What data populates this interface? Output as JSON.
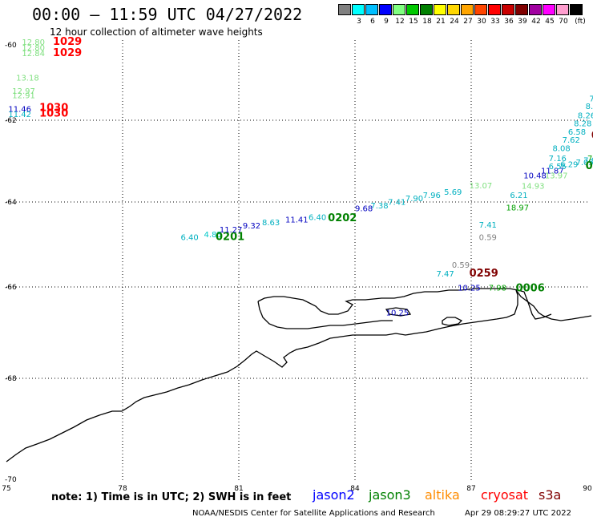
{
  "header": {
    "title": "00:00 – 11:59 UTC 04/27/2022",
    "subtitle": "12 hour collection of altimeter wave heights"
  },
  "legend": {
    "unit_label": "(ft)",
    "bins": [
      {
        "label": "",
        "color": "#808080"
      },
      {
        "label": "3",
        "color": "#00ffff"
      },
      {
        "label": "6",
        "color": "#00bfff"
      },
      {
        "label": "9",
        "color": "#0000ff"
      },
      {
        "label": "12",
        "color": "#80ff80"
      },
      {
        "label": "15",
        "color": "#00c800"
      },
      {
        "label": "18",
        "color": "#008000"
      },
      {
        "label": "21",
        "color": "#ffff00"
      },
      {
        "label": "24",
        "color": "#ffd700"
      },
      {
        "label": "27",
        "color": "#ffa500"
      },
      {
        "label": "30",
        "color": "#ff4500"
      },
      {
        "label": "33",
        "color": "#ff0000"
      },
      {
        "label": "36",
        "color": "#c80000"
      },
      {
        "label": "39",
        "color": "#800000"
      },
      {
        "label": "42",
        "color": "#a000a0"
      },
      {
        "label": "45",
        "color": "#ff00ff"
      },
      {
        "label": "70",
        "color": "#ff9ecf"
      },
      {
        "label": "",
        "color": "#000000"
      }
    ]
  },
  "map": {
    "lon_ticks": [
      "75",
      "78",
      "81",
      "84",
      "87",
      "90"
    ],
    "lat_ticks": [
      "-60",
      "-62",
      "-64",
      "-66",
      "-68",
      "-70"
    ],
    "observations": [
      {
        "text": "12.80",
        "lon": 75.4,
        "lat": -60.0,
        "color": "#80e080"
      },
      {
        "text": "12.80",
        "lon": 75.4,
        "lat": -60.15,
        "color": "#80e080"
      },
      {
        "text": "12.84",
        "lon": 75.4,
        "lat": -60.3,
        "color": "#80e080"
      },
      {
        "text": "1029",
        "lon": 76.2,
        "lat": -60.0,
        "color": "#ff0000",
        "time": true
      },
      {
        "text": "1029",
        "lon": 76.2,
        "lat": -60.3,
        "color": "#ff0000",
        "time": true
      },
      {
        "text": "13.18",
        "lon": 75.25,
        "lat": -60.95,
        "color": "#80e080"
      },
      {
        "text": "12.97",
        "lon": 75.15,
        "lat": -61.3,
        "color": "#80e080"
      },
      {
        "text": "12.91",
        "lon": 75.15,
        "lat": -61.42,
        "color": "#80e080"
      },
      {
        "text": "11.46",
        "lon": 75.05,
        "lat": -61.78,
        "color": "#0000c0"
      },
      {
        "text": "11.42",
        "lon": 75.05,
        "lat": -61.92,
        "color": "#00b0c0"
      },
      {
        "text": "1030",
        "lon": 75.85,
        "lat": -61.75,
        "color": "#ff0000",
        "time": true
      },
      {
        "text": "1030",
        "lon": 75.85,
        "lat": -61.9,
        "color": "#ff0000",
        "time": true
      },
      {
        "text": "6.40",
        "lon": 79.5,
        "lat": -64.9,
        "color": "#00b0c0"
      },
      {
        "text": "4.85",
        "lon": 80.1,
        "lat": -64.83,
        "color": "#00c8c8"
      },
      {
        "text": "0201",
        "lon": 80.4,
        "lat": -64.9,
        "color": "#008000",
        "time": true
      },
      {
        "text": "11.27",
        "lon": 80.5,
        "lat": -64.72,
        "color": "#0000c0"
      },
      {
        "text": "9.32",
        "lon": 81.1,
        "lat": -64.62,
        "color": "#0000c0"
      },
      {
        "text": "8.63",
        "lon": 81.6,
        "lat": -64.55,
        "color": "#00b0c0"
      },
      {
        "text": "11.41",
        "lon": 82.2,
        "lat": -64.48,
        "color": "#0000c0"
      },
      {
        "text": "6.40",
        "lon": 82.8,
        "lat": -64.42,
        "color": "#00b0c0"
      },
      {
        "text": "0202",
        "lon": 83.3,
        "lat": -64.45,
        "color": "#008000",
        "time": true
      },
      {
        "text": "9.68",
        "lon": 84.0,
        "lat": -64.22,
        "color": "#0000c0"
      },
      {
        "text": "7.38",
        "lon": 84.4,
        "lat": -64.15,
        "color": "#00b0c0"
      },
      {
        "text": "7.41",
        "lon": 84.85,
        "lat": -64.07,
        "color": "#00b0c0"
      },
      {
        "text": "7.90",
        "lon": 85.3,
        "lat": -63.98,
        "color": "#00b0c0"
      },
      {
        "text": "7.96",
        "lon": 85.75,
        "lat": -63.9,
        "color": "#00b0c0"
      },
      {
        "text": "5.69",
        "lon": 86.3,
        "lat": -63.82,
        "color": "#00b0c0"
      },
      {
        "text": "13.07",
        "lon": 86.95,
        "lat": -63.67,
        "color": "#80e080"
      },
      {
        "text": "10.48",
        "lon": 88.35,
        "lat": -63.42,
        "color": "#0000c0"
      },
      {
        "text": "11.87",
        "lon": 88.8,
        "lat": -63.3,
        "color": "#0000c0"
      },
      {
        "text": "13.97",
        "lon": 88.9,
        "lat": -63.42,
        "color": "#80e080"
      },
      {
        "text": "14.93",
        "lon": 88.3,
        "lat": -63.68,
        "color": "#80e080"
      },
      {
        "text": "6.21",
        "lon": 88.0,
        "lat": -63.9,
        "color": "#00b0c0"
      },
      {
        "text": "18.97",
        "lon": 87.9,
        "lat": -64.2,
        "color": "#00a000"
      },
      {
        "text": "7.41",
        "lon": 87.2,
        "lat": -64.6,
        "color": "#00b0c0"
      },
      {
        "text": "0.59",
        "lon": 87.2,
        "lat": -64.9,
        "color": "#808080"
      },
      {
        "text": "0.59",
        "lon": 86.5,
        "lat": -65.55,
        "color": "#808080"
      },
      {
        "text": "0259",
        "lon": 86.95,
        "lat": -65.75,
        "color": "#800000",
        "time": true
      },
      {
        "text": "7.47",
        "lon": 86.1,
        "lat": -65.75,
        "color": "#00b0c0"
      },
      {
        "text": "10.25",
        "lon": 86.65,
        "lat": -66.08,
        "color": "#0000c0"
      },
      {
        "text": "7.98",
        "lon": 87.45,
        "lat": -66.08,
        "color": "#00a000"
      },
      {
        "text": "0006",
        "lon": 88.15,
        "lat": -66.1,
        "color": "#008000",
        "time": true
      },
      {
        "text": "10.25",
        "lon": 84.8,
        "lat": -66.62,
        "color": "#0000c0"
      },
      {
        "text": "6.55",
        "lon": 89.0,
        "lat": -63.2,
        "color": "#00b0c0"
      },
      {
        "text": "6.29",
        "lon": 89.3,
        "lat": -63.15,
        "color": "#00b0c0"
      },
      {
        "text": "7.05",
        "lon": 89.7,
        "lat": -63.1,
        "color": "#00b0c0"
      },
      {
        "text": "7.16",
        "lon": 89.0,
        "lat": -63.0,
        "color": "#00b0c0"
      },
      {
        "text": "8.08",
        "lon": 89.1,
        "lat": -62.75,
        "color": "#00b0c0"
      },
      {
        "text": "7.62",
        "lon": 89.35,
        "lat": -62.55,
        "color": "#00b0c0"
      },
      {
        "text": "6.58",
        "lon": 89.5,
        "lat": -62.35,
        "color": "#00b0c0"
      },
      {
        "text": "8.28",
        "lon": 89.65,
        "lat": -62.15,
        "color": "#00b0c0"
      },
      {
        "text": "8.26",
        "lon": 89.75,
        "lat": -61.95,
        "color": "#00b0c0"
      },
      {
        "text": "8.28",
        "lon": 89.95,
        "lat": -61.7,
        "color": "#00b0c0"
      },
      {
        "text": "7.81",
        "lon": 90.05,
        "lat": -61.5,
        "color": "#00b0c0"
      },
      {
        "text": "7.8",
        "lon": 90.15,
        "lat": -61.3,
        "color": "#00b0c0"
      },
      {
        "text": "6.",
        "lon": 90.3,
        "lat": -61.1,
        "color": "#00b0c0"
      },
      {
        "text": "7.",
        "lon": 90.35,
        "lat": -60.9,
        "color": "#00b0c0"
      },
      {
        "text": "025",
        "lon": 90.1,
        "lat": -62.45,
        "color": "#800000",
        "time": true
      },
      {
        "text": "7.80",
        "lon": 90.0,
        "lat": -63.0,
        "color": "#00a000"
      },
      {
        "text": "7.8",
        "lon": 89.9,
        "lat": -63.05,
        "color": "#00b0c0"
      },
      {
        "text": "020",
        "lon": 89.95,
        "lat": -63.2,
        "color": "#008000",
        "time": true
      },
      {
        "text": "3",
        "lon": 90.3,
        "lat": -62.9,
        "color": "#00a000"
      }
    ]
  },
  "footer": {
    "note": "note: 1) Time is in UTC; 2) SWH is in feet",
    "satellites": [
      {
        "name": "jason2",
        "color": "#0000ff"
      },
      {
        "name": "jason3",
        "color": "#008000"
      },
      {
        "name": "altika",
        "color": "#ff8c00"
      },
      {
        "name": "cryosat",
        "color": "#ff0000"
      },
      {
        "name": "s3a",
        "color": "#800000"
      }
    ],
    "credit": "NOAA/NESDIS Center for Satellite Applications and Research",
    "generated": "Apr 29 08:29:27 UTC 2022"
  }
}
